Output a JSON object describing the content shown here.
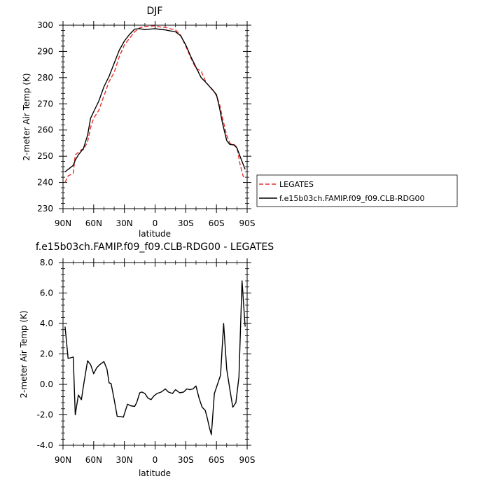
{
  "chart_data": [
    {
      "type": "line",
      "title": "DJF",
      "xlabel": "latitude",
      "ylabel": "2-meter Air Temp (K)",
      "xlim": [
        90,
        -90
      ],
      "ylim": [
        230,
        300
      ],
      "xticks": [
        90,
        60,
        30,
        0,
        -30,
        -60,
        -90
      ],
      "xtick_labels": [
        "90N",
        "60N",
        "30N",
        "0",
        "30S",
        "60S",
        "90S"
      ],
      "yticks": [
        230,
        240,
        250,
        260,
        270,
        280,
        290,
        300
      ],
      "ytick_labels": [
        "230",
        "240",
        "250",
        "260",
        "270",
        "280",
        "290",
        "300"
      ],
      "grid": false,
      "legend_position": "outside-right",
      "series": [
        {
          "name": "LEGATES",
          "color": "#e8302a",
          "dash": "dashed",
          "x": [
            88,
            85,
            80,
            78,
            75,
            72,
            70,
            66,
            63,
            60,
            55,
            50,
            45,
            40,
            35,
            30,
            25,
            20,
            15,
            10,
            5,
            0,
            -5,
            -10,
            -15,
            -20,
            -25,
            -30,
            -35,
            -40,
            -45,
            -50,
            -55,
            -58,
            -60,
            -63,
            -66,
            -70,
            -73,
            -77,
            -80,
            -83,
            -86,
            -88
          ],
          "y": [
            240,
            242.5,
            243.5,
            250.5,
            251.5,
            252.5,
            252.5,
            255.5,
            261,
            264.5,
            267.5,
            273,
            278.5,
            282,
            288,
            292.5,
            295,
            297.5,
            299,
            299.5,
            299.6,
            299.8,
            299.3,
            299.2,
            298.6,
            298.2,
            296.2,
            292,
            287.5,
            283.5,
            282.5,
            278,
            276,
            274.5,
            273,
            270,
            264.5,
            258,
            255,
            254.5,
            253.5,
            247,
            242.5,
            241.5
          ]
        },
        {
          "name": "f.e15b03ch.FAMIP.f09_f09.CLB-RDG00",
          "color": "#000000",
          "dash": "solid",
          "x": [
            88,
            85,
            80,
            78,
            75,
            72,
            70,
            66,
            63,
            60,
            55,
            50,
            45,
            40,
            35,
            30,
            25,
            20,
            15,
            10,
            5,
            0,
            -5,
            -10,
            -15,
            -20,
            -25,
            -30,
            -35,
            -40,
            -45,
            -50,
            -55,
            -58,
            -60,
            -63,
            -66,
            -70,
            -73,
            -77,
            -80,
            -83,
            -86,
            -88
          ],
          "y": [
            244,
            245,
            246.5,
            248.5,
            250.5,
            252,
            253,
            258,
            264.5,
            267,
            271,
            276.5,
            280.5,
            285.5,
            290.5,
            294,
            296.5,
            298.5,
            298.7,
            298.3,
            298.5,
            298.7,
            298.4,
            298.2,
            297.8,
            297.5,
            296,
            292.5,
            288,
            284,
            280,
            278,
            275.8,
            274.5,
            273.5,
            268.5,
            262.5,
            256,
            254.5,
            254.3,
            253.2,
            250,
            247,
            245
          ]
        }
      ]
    },
    {
      "type": "line",
      "title": "f.e15b03ch.FAMIP.f09_f09.CLB-RDG00 - LEGATES",
      "xlabel": "latitude",
      "ylabel": "2-meter Air Temp (K)",
      "xlim": [
        90,
        -90
      ],
      "ylim": [
        -4.0,
        8.0
      ],
      "xticks": [
        90,
        60,
        30,
        0,
        -30,
        -60,
        -90
      ],
      "xtick_labels": [
        "90N",
        "60N",
        "30N",
        "0",
        "30S",
        "60S",
        "90S"
      ],
      "yticks": [
        -4.0,
        -2.0,
        0.0,
        2.0,
        4.0,
        6.0,
        8.0
      ],
      "ytick_labels": [
        "-4.0",
        "-2.0",
        "0.0",
        "2.0",
        "4.0",
        "6.0",
        "8.0"
      ],
      "grid": false,
      "series": [
        {
          "color": "#000000",
          "dash": "solid",
          "x": [
            88,
            85,
            80,
            78,
            75,
            72,
            70,
            66,
            63,
            60,
            57,
            54,
            50,
            47,
            45,
            43,
            40,
            37,
            35,
            31,
            27,
            24,
            20,
            18,
            15,
            13,
            10,
            7,
            4,
            1,
            -2,
            -6,
            -10,
            -13,
            -17,
            -20,
            -24,
            -28,
            -31,
            -34,
            -37,
            -40,
            -43,
            -46,
            -49,
            -51,
            -53,
            -55,
            -58,
            -61,
            -64,
            -67,
            -70,
            -73,
            -76,
            -79,
            -82,
            -85,
            -88
          ],
          "y": [
            3.8,
            1.7,
            1.8,
            -2.0,
            -0.7,
            -1.0,
            -0.1,
            1.55,
            1.3,
            0.7,
            1.1,
            1.3,
            1.5,
            1.0,
            0.1,
            0.05,
            -1.0,
            -2.1,
            -2.1,
            -2.15,
            -1.3,
            -1.4,
            -1.45,
            -1.2,
            -0.55,
            -0.5,
            -0.6,
            -0.9,
            -1.0,
            -0.75,
            -0.6,
            -0.5,
            -0.3,
            -0.5,
            -0.6,
            -0.35,
            -0.55,
            -0.5,
            -0.3,
            -0.35,
            -0.3,
            -0.1,
            -0.9,
            -1.5,
            -1.7,
            -2.2,
            -2.8,
            -3.3,
            -0.6,
            0.0,
            0.6,
            4.0,
            1.0,
            -0.3,
            -1.5,
            -1.2,
            0.5,
            6.8,
            3.8
          ]
        }
      ]
    }
  ]
}
